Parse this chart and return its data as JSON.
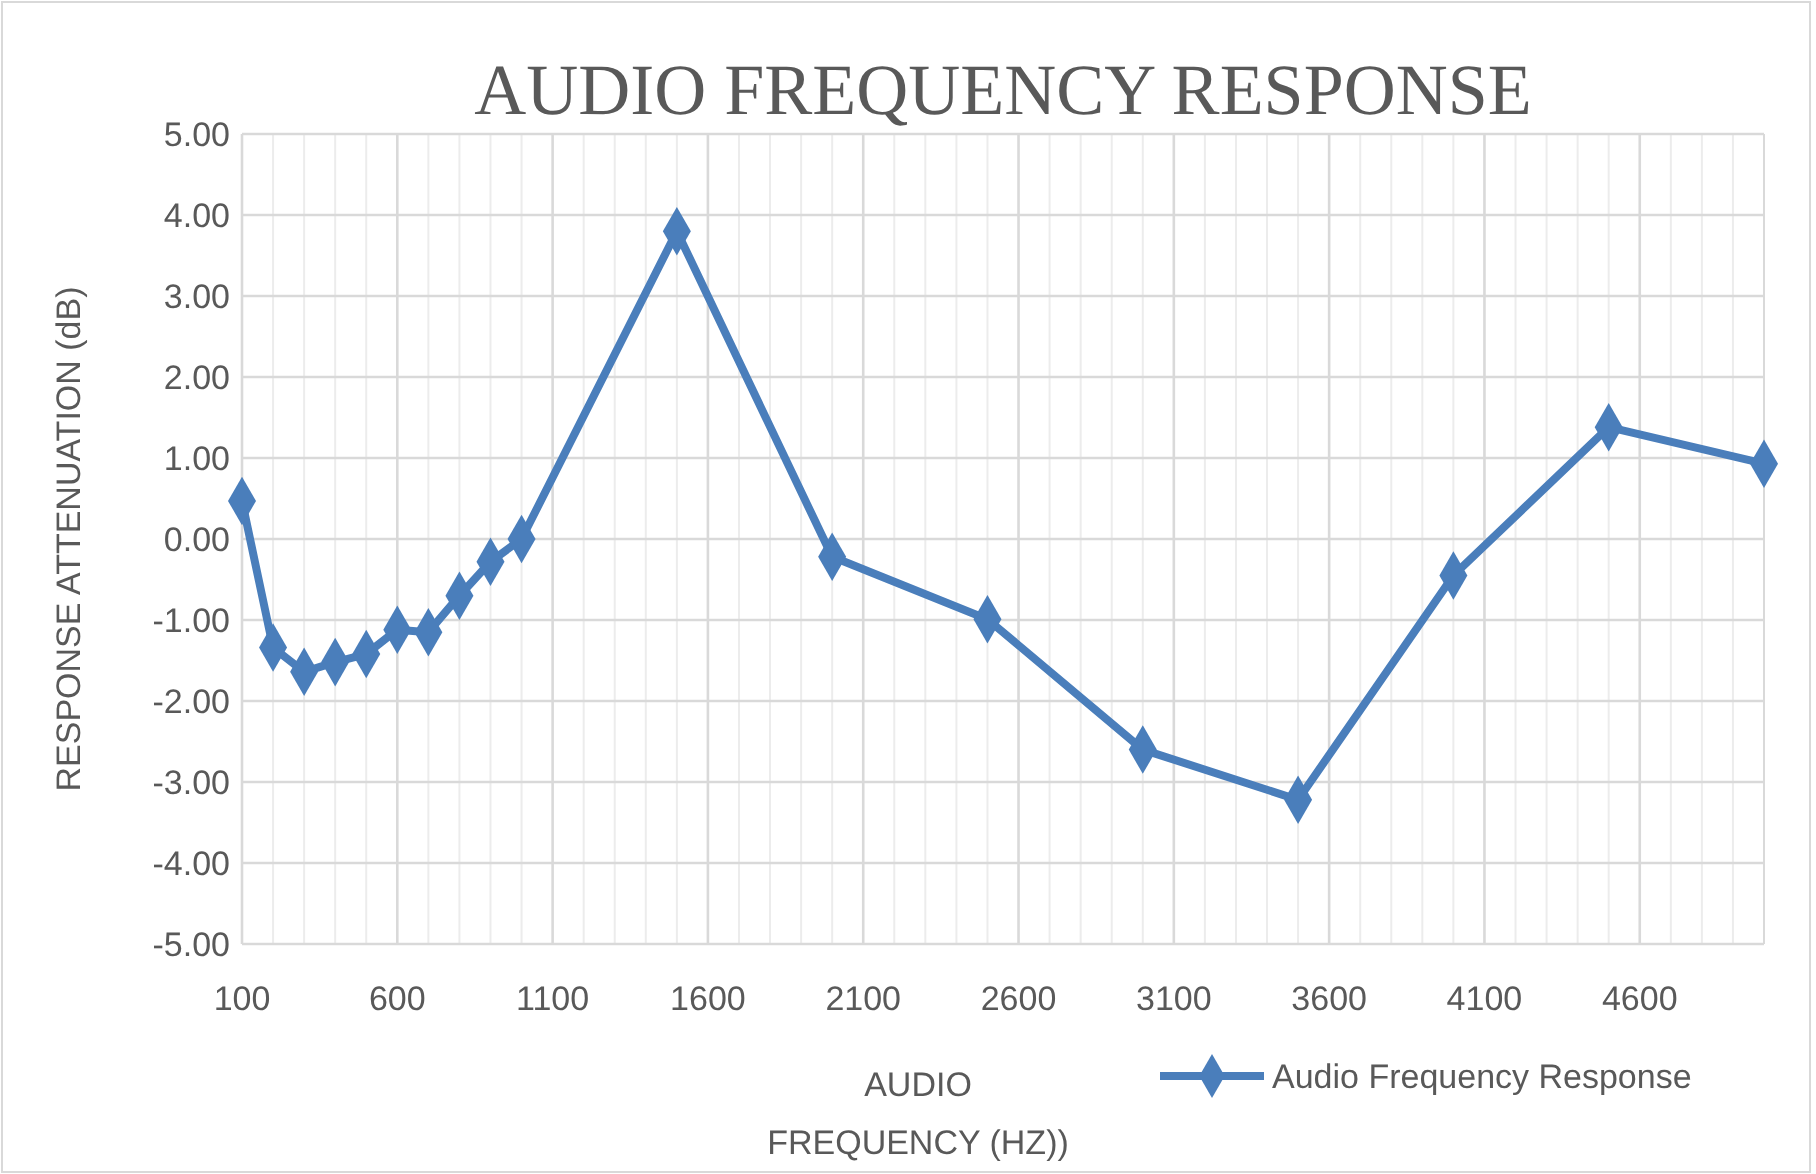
{
  "chart_data": {
    "type": "line",
    "title": "AUDIO FREQUENCY RESPONSE",
    "xlabel": "AUDIO FREQUENCY (HZ))",
    "ylabel": "RESPONSE ATTENUATION (dB)",
    "x": [
      100,
      200,
      300,
      400,
      500,
      600,
      700,
      800,
      900,
      1000,
      1500,
      2000,
      2500,
      3000,
      3500,
      4000,
      4500,
      5000
    ],
    "series": [
      {
        "name": "Audio Frequency Response",
        "color": "#4a7ebb",
        "values": [
          0.47,
          -1.34,
          -1.64,
          -1.52,
          -1.42,
          -1.12,
          -1.15,
          -0.7,
          -0.28,
          0.0,
          3.8,
          -0.22,
          -0.99,
          -2.6,
          -3.22,
          -0.45,
          1.38,
          0.93
        ]
      }
    ],
    "xlim": [
      100,
      5000
    ],
    "xticks": [
      100,
      {
        "value": 200,
        "label": null
      },
      {
        "value": 300,
        "label": null
      },
      {
        "value": 400,
        "label": null
      },
      {
        "value": 500,
        "label": null
      },
      600,
      {
        "value": 700,
        "label": null
      },
      {
        "value": 800,
        "label": null
      },
      {
        "value": 900,
        "label": null
      },
      {
        "value": 1000,
        "label": null
      },
      1100,
      {
        "value": 1200,
        "label": null
      },
      {
        "value": 1300,
        "label": null
      },
      {
        "value": 1400,
        "label": null
      },
      {
        "value": 1500,
        "label": null
      },
      1600,
      {
        "value": 1700,
        "label": null
      },
      {
        "value": 1800,
        "label": null
      },
      {
        "value": 1900,
        "label": null
      },
      {
        "value": 2000,
        "label": null
      },
      2100,
      {
        "value": 2200,
        "label": null
      },
      {
        "value": 2300,
        "label": null
      },
      {
        "value": 2400,
        "label": null
      },
      {
        "value": 2500,
        "label": null
      },
      2600,
      {
        "value": 2700,
        "label": null
      },
      {
        "value": 2800,
        "label": null
      },
      {
        "value": 2900,
        "label": null
      },
      {
        "value": 3000,
        "label": null
      },
      3100,
      {
        "value": 3200,
        "label": null
      },
      {
        "value": 3300,
        "label": null
      },
      {
        "value": 3400,
        "label": null
      },
      {
        "value": 3500,
        "label": null
      },
      3600,
      {
        "value": 3700,
        "label": null
      },
      {
        "value": 3800,
        "label": null
      },
      {
        "value": 3900,
        "label": null
      },
      {
        "value": 4000,
        "label": null
      },
      4100,
      {
        "value": 4200,
        "label": null
      },
      {
        "value": 4300,
        "label": null
      },
      {
        "value": 4400,
        "label": null
      },
      {
        "value": 4500,
        "label": null
      },
      4600,
      {
        "value": 4700,
        "label": null
      },
      {
        "value": 4800,
        "label": null
      },
      {
        "value": 4900,
        "label": null
      },
      {
        "value": 5000,
        "label": null
      }
    ],
    "ylim": [
      -5,
      5
    ],
    "yticks": [
      {
        "value": -5,
        "label": "-5.00"
      },
      {
        "value": -4,
        "label": "-4.00"
      },
      {
        "value": -3,
        "label": "-3.00"
      },
      {
        "value": -2,
        "label": "-2.00"
      },
      {
        "value": -1,
        "label": "-1.00"
      },
      {
        "value": 0,
        "label": "0.00"
      },
      {
        "value": 1,
        "label": "1.00"
      },
      {
        "value": 2,
        "label": "2.00"
      },
      {
        "value": 3,
        "label": "3.00"
      },
      {
        "value": 4,
        "label": "4.00"
      },
      {
        "value": 5,
        "label": "5.00"
      }
    ],
    "grid": true,
    "legend": "bottom right",
    "marker": "diamond",
    "line_style": "solid"
  }
}
